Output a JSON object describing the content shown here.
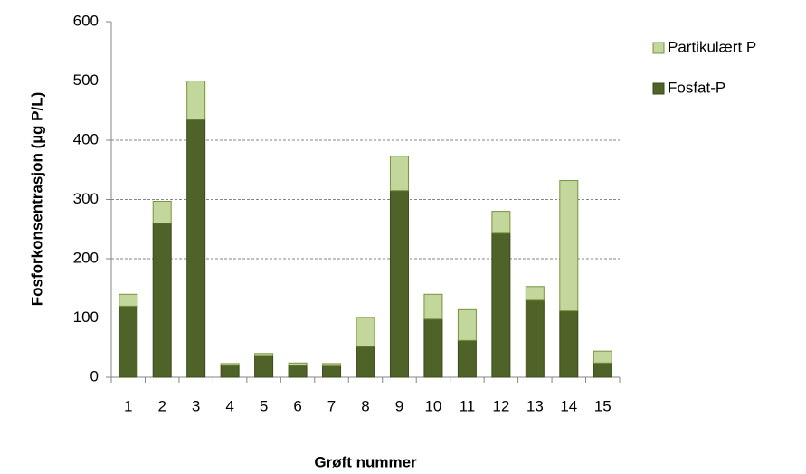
{
  "chart_data": {
    "type": "stacked_bar",
    "x_label": "Grøft nummer",
    "y_label": "Fosforkonsentrasjon (µg P/L)",
    "categories": [
      "1",
      "2",
      "3",
      "4",
      "5",
      "6",
      "7",
      "8",
      "9",
      "10",
      "11",
      "12",
      "13",
      "14",
      "15"
    ],
    "series": [
      {
        "name": "Fosfat-P",
        "color": "#4f6228",
        "values": [
          120,
          260,
          435,
          20,
          37,
          20,
          19,
          52,
          315,
          98,
          62,
          243,
          130,
          112,
          24
        ]
      },
      {
        "name": "Partikulært P",
        "color": "#c3d69b",
        "values": [
          20,
          37,
          65,
          3,
          3,
          4,
          4,
          49,
          58,
          42,
          52,
          37,
          23,
          220,
          20
        ]
      }
    ],
    "ylim": [
      0,
      600
    ],
    "yticks": [
      0,
      100,
      200,
      300,
      400,
      500,
      600
    ],
    "grid": true,
    "legend": "right"
  }
}
